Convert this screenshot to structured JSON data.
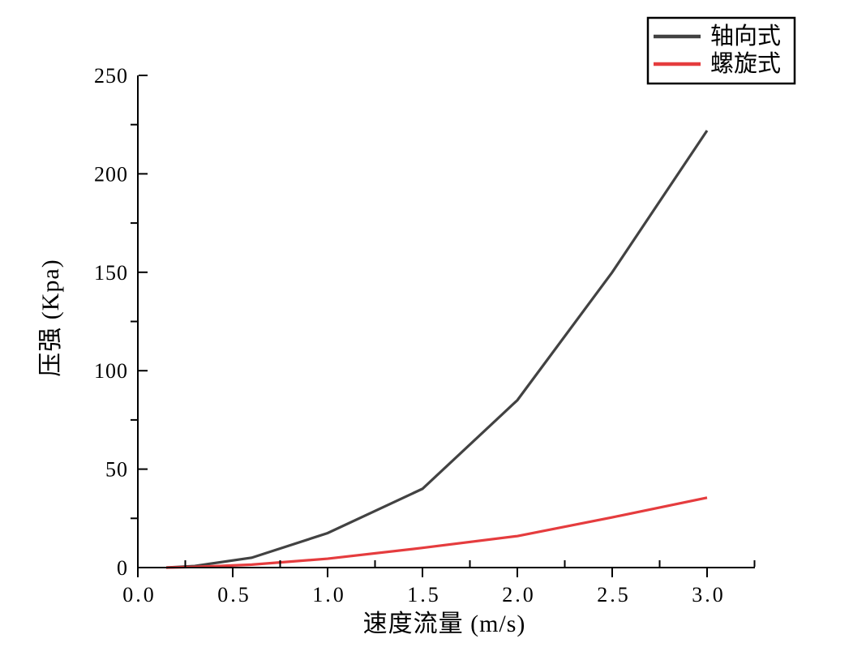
{
  "chart_data": {
    "type": "line",
    "title": "",
    "xlabel": "速度流量 (m/s)",
    "ylabel": "压强 (Kpa)",
    "xlim": [
      0,
      3.25
    ],
    "ylim": [
      0,
      250
    ],
    "grid": false,
    "legend_position": "top-right",
    "x_major_ticks": [
      0.0,
      0.5,
      1.0,
      1.5,
      2.0,
      2.5,
      3.0
    ],
    "x_tick_labels": [
      "0.0",
      "0.5",
      "1.0",
      "1.5",
      "2.0",
      "2.5",
      "3.0"
    ],
    "x_minor_ticks": [
      0.25,
      0.75,
      1.25,
      1.75,
      2.25,
      2.75,
      3.25
    ],
    "y_major_ticks": [
      0,
      50,
      100,
      150,
      200,
      250
    ],
    "y_tick_labels": [
      "0",
      "50",
      "100",
      "150",
      "200",
      "250"
    ],
    "y_minor_ticks": [
      25,
      75,
      125,
      175,
      225
    ],
    "series": [
      {
        "name": "轴向式",
        "color": "#424242",
        "x": [
          0.15,
          0.3,
          0.6,
          1.0,
          1.5,
          2.0,
          2.5,
          3.0
        ],
        "y": [
          0,
          0.8,
          5,
          17.5,
          40,
          85,
          150,
          222
        ]
      },
      {
        "name": "螺旋式",
        "color": "#e53c3e",
        "x": [
          0.15,
          0.3,
          0.6,
          1.0,
          1.5,
          2.0,
          2.5,
          3.0
        ],
        "y": [
          0,
          0.3,
          1.5,
          4.5,
          10,
          16,
          25.5,
          35.5
        ]
      }
    ]
  },
  "colors": {
    "axis": "#000000",
    "background": "#ffffff",
    "series_axial": "#424242",
    "series_spiral": "#e53c3e"
  }
}
